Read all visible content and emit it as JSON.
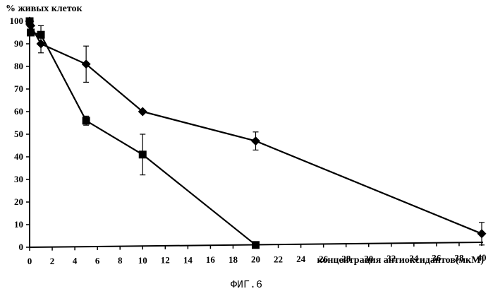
{
  "chart_data": {
    "type": "line",
    "ylabel": "% живых клеток",
    "xlabel": "концентрация антиоксидантов(мкМ)",
    "caption": "ФИГ.6",
    "xlim": [
      0,
      40
    ],
    "ylim": [
      0,
      100
    ],
    "x_ticks": [
      0,
      2,
      4,
      6,
      8,
      10,
      12,
      14,
      16,
      18,
      20,
      22,
      24,
      26,
      28,
      30,
      32,
      34,
      36,
      38,
      40
    ],
    "y_ticks": [
      0,
      10,
      20,
      30,
      40,
      50,
      60,
      70,
      80,
      90,
      100
    ],
    "grid": false,
    "legend": "none",
    "series": [
      {
        "marker": "diamond",
        "color": "#000000",
        "points": [
          {
            "x": 0,
            "y": 100,
            "err": 0
          },
          {
            "x": 0.1,
            "y": 98,
            "err": 0
          },
          {
            "x": 1,
            "y": 90,
            "err": 4
          },
          {
            "x": 5,
            "y": 81,
            "err": 8
          },
          {
            "x": 10,
            "y": 60,
            "err": 0
          },
          {
            "x": 20,
            "y": 47,
            "err": 4
          },
          {
            "x": 40,
            "y": 6,
            "err": 5
          }
        ]
      },
      {
        "marker": "square",
        "color": "#000000",
        "points": [
          {
            "x": 0,
            "y": 100,
            "err": 0
          },
          {
            "x": 0.1,
            "y": 95,
            "err": 0
          },
          {
            "x": 1,
            "y": 94,
            "err": 4
          },
          {
            "x": 5,
            "y": 56,
            "err": 2
          },
          {
            "x": 10,
            "y": 41,
            "err": 9
          },
          {
            "x": 20,
            "y": 1,
            "err": 0
          }
        ]
      }
    ]
  }
}
